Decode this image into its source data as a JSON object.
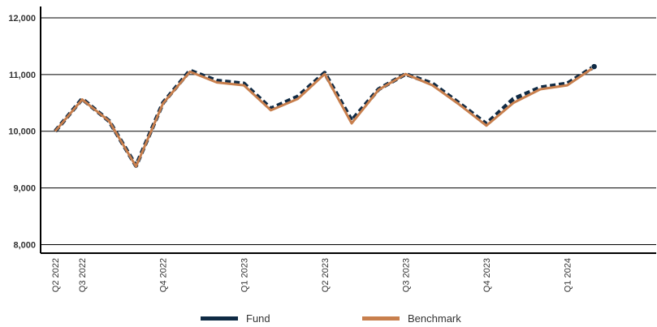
{
  "chart_data": {
    "type": "line",
    "x": [
      "2022-04",
      "2022-05",
      "2022-06",
      "2022-07",
      "2022-08",
      "2022-09",
      "2022-10",
      "2022-11",
      "2022-12",
      "2023-01",
      "2023-02",
      "2023-03",
      "2023-04",
      "2023-05",
      "2023-06",
      "2023-07",
      "2023-08",
      "2023-09",
      "2023-10",
      "2023-11",
      "2023-12",
      "2024-01",
      "2024-02"
    ],
    "x_tick_labels": [
      {
        "x": "2022-04",
        "label": "Q2 2022"
      },
      {
        "x": "2022-05",
        "label": "Q3 2022"
      },
      {
        "x": "2022-08",
        "label": "Q4 2022"
      },
      {
        "x": "2022-11",
        "label": "Q1 2023"
      },
      {
        "x": "2023-02",
        "label": "Q2 2023"
      },
      {
        "x": "2023-05",
        "label": "Q3 2023"
      },
      {
        "x": "2023-08",
        "label": "Q4 2023"
      },
      {
        "x": "2023-11",
        "label": "Q1 2024"
      }
    ],
    "y_ticks": [
      "8,000",
      "9,000",
      "10,000",
      "11,000",
      "12,000"
    ],
    "ylim": [
      7850,
      12200
    ],
    "grid": "horizontal",
    "legend_position": "bottom",
    "series": [
      {
        "name": "Fund",
        "color": "#0f2a44",
        "style": "dashed",
        "values": [
          10000,
          10570,
          10180,
          9390,
          10500,
          11070,
          10890,
          10840,
          10400,
          10610,
          11030,
          10190,
          10740,
          11010,
          10840,
          10490,
          10130,
          10570,
          10770,
          10840,
          11140,
          null,
          null
        ]
      },
      {
        "name": "Benchmark",
        "color": "#c87f4d",
        "style": "solid",
        "values": [
          10000,
          10560,
          10180,
          9380,
          10490,
          11050,
          10860,
          10810,
          10370,
          10570,
          11010,
          10140,
          10730,
          11010,
          10810,
          10470,
          10100,
          10500,
          10740,
          10810,
          11130,
          null,
          null
        ]
      }
    ]
  },
  "legend": {
    "fund_label": "Fund",
    "benchmark_label": "Benchmark"
  }
}
